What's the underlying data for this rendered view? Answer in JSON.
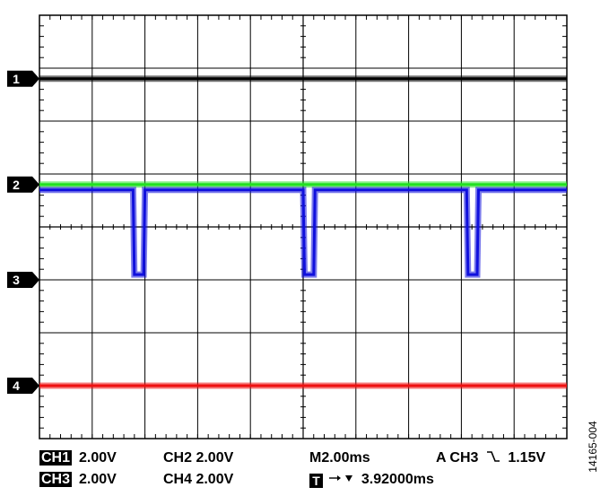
{
  "chart_data": {
    "type": "line",
    "title": "",
    "xlabel": "",
    "ylabel": "",
    "grid": true,
    "divisions": {
      "horizontal": 10,
      "vertical": 8
    },
    "time_per_div_ms": 2.0,
    "x_range_ms": [
      0,
      20
    ],
    "y_range_div": [
      -4,
      4
    ],
    "series": [
      {
        "name": "1",
        "color": "#000000",
        "volts_per_div": 2.0,
        "ground_div": 2.8,
        "x": [
          0,
          20
        ],
        "y": [
          0.0,
          0.0
        ]
      },
      {
        "name": "2",
        "color": "#22e022",
        "volts_per_div": 2.0,
        "ground_div": 0.8,
        "x": [
          0,
          20
        ],
        "y": [
          0.0,
          0.0
        ]
      },
      {
        "name": "3",
        "color": "#1010dd",
        "volts_per_div": 2.0,
        "ground_div": -1.0,
        "x": [
          0,
          3.55,
          3.6,
          3.95,
          4.0,
          10.0,
          10.05,
          10.4,
          10.45,
          16.2,
          16.25,
          16.6,
          16.65,
          20
        ],
        "y": [
          3.4,
          3.4,
          0.2,
          0.2,
          3.4,
          3.4,
          0.2,
          0.2,
          3.4,
          3.4,
          0.2,
          0.2,
          3.4,
          3.4
        ]
      },
      {
        "name": "4",
        "color": "#ee1111",
        "volts_per_div": 2.0,
        "ground_div": -3.0,
        "x": [
          0,
          20
        ],
        "y": [
          0.0,
          0.0
        ]
      }
    ]
  },
  "status": {
    "ch1_label": "CH1",
    "ch1_scale": "2.00V",
    "ch2_text": "CH2 2.00V",
    "timebase": "M2.00ms",
    "trigger": "A  CH3",
    "trigger_slope_icon": "falling-edge-icon",
    "trigger_level": "1.15V",
    "ch3_label": "CH3",
    "ch3_scale": "2.00V",
    "ch4_text": "CH4 2.00V",
    "t_label": "T",
    "trigger_pos_icon": "arrow-right-triangle-down-icon",
    "trigger_pos_value": "3.92000ms"
  },
  "figure_id": "14165-004"
}
